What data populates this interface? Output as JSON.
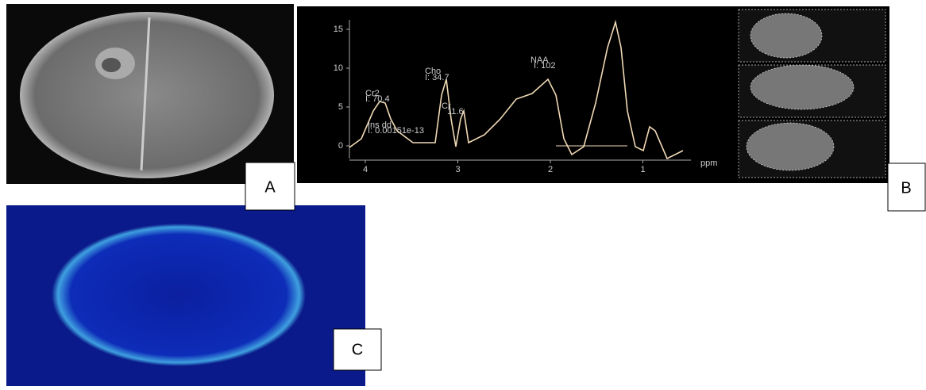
{
  "panels": [
    {
      "label": "A"
    },
    {
      "label": "B"
    },
    {
      "label": "C"
    }
  ],
  "spectrum": {
    "yticks": [
      15,
      10,
      5,
      0
    ],
    "xticks": [
      4,
      3,
      2,
      1
    ],
    "x_unit": "ppm",
    "peaks": [
      {
        "name": "Cr2",
        "value": "I: 70.4"
      },
      {
        "name": "Cho",
        "value": "I: 34.7"
      },
      {
        "name": "NAA",
        "value": "I: 102"
      },
      {
        "name": "Cr",
        "value": "11.6"
      },
      {
        "name": "Ins dd",
        "value": "I: 0.00151e-13"
      }
    ]
  }
}
